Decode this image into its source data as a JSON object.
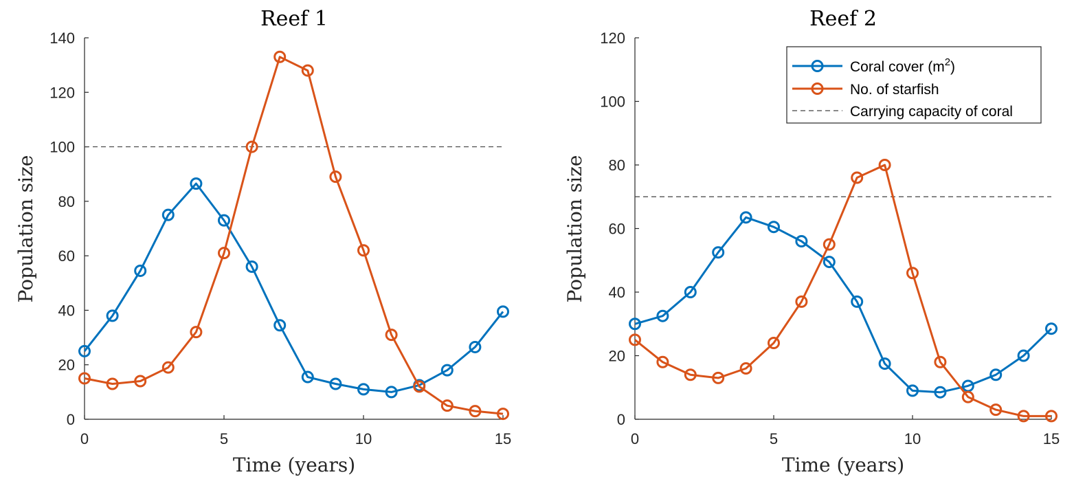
{
  "colors": {
    "coral": "#0072BD",
    "starfish": "#D95319",
    "capacity": "#404040",
    "axis": "#262626"
  },
  "legend": {
    "coral_label": "Coral cover (m",
    "coral_sup": "2",
    "coral_close": ")",
    "starfish_label": "No. of starfish",
    "capacity_label": "Carrying capacity of coral"
  },
  "chart_data": [
    {
      "type": "line",
      "title": "Reef 1",
      "xlabel": "Time (years)",
      "ylabel": "Population size",
      "xlim": [
        0,
        15
      ],
      "ylim": [
        0,
        140
      ],
      "xticks": [
        0,
        5,
        10,
        15
      ],
      "yticks": [
        0,
        20,
        40,
        60,
        80,
        100,
        120,
        140
      ],
      "x": [
        0,
        1,
        2,
        3,
        4,
        5,
        6,
        7,
        8,
        9,
        10,
        11,
        12,
        13,
        14,
        15
      ],
      "series": [
        {
          "name": "Coral cover (m2)",
          "values": [
            25,
            38,
            54.5,
            75,
            86.5,
            73,
            56,
            34.5,
            15.5,
            13,
            11,
            10,
            12.5,
            18,
            26.5,
            39.5
          ]
        },
        {
          "name": "No. of starfish",
          "values": [
            15,
            13,
            14,
            19,
            32,
            61,
            100,
            133,
            128,
            89,
            62,
            31,
            12,
            5,
            3,
            2
          ]
        }
      ],
      "capacity": 100,
      "grid": false,
      "legend": "none"
    },
    {
      "type": "line",
      "title": "Reef 2",
      "xlabel": "Time (years)",
      "ylabel": "Population size",
      "xlim": [
        0,
        15
      ],
      "ylim": [
        0,
        120
      ],
      "xticks": [
        0,
        5,
        10,
        15
      ],
      "yticks": [
        0,
        20,
        40,
        60,
        80,
        100,
        120
      ],
      "x": [
        0,
        1,
        2,
        3,
        4,
        5,
        6,
        7,
        8,
        9,
        10,
        11,
        12,
        13,
        14,
        15
      ],
      "series": [
        {
          "name": "Coral cover (m2)",
          "values": [
            30,
            32.5,
            40,
            52.5,
            63.5,
            60.5,
            56,
            49.5,
            37,
            17.5,
            9,
            8.5,
            10.5,
            14,
            20,
            28.5
          ]
        },
        {
          "name": "No. of starfish",
          "values": [
            25,
            18,
            14,
            13,
            16,
            24,
            37,
            55,
            76,
            80,
            46,
            18,
            7,
            3,
            1,
            1
          ]
        }
      ],
      "capacity": 70,
      "grid": false,
      "legend": "top-right"
    }
  ]
}
